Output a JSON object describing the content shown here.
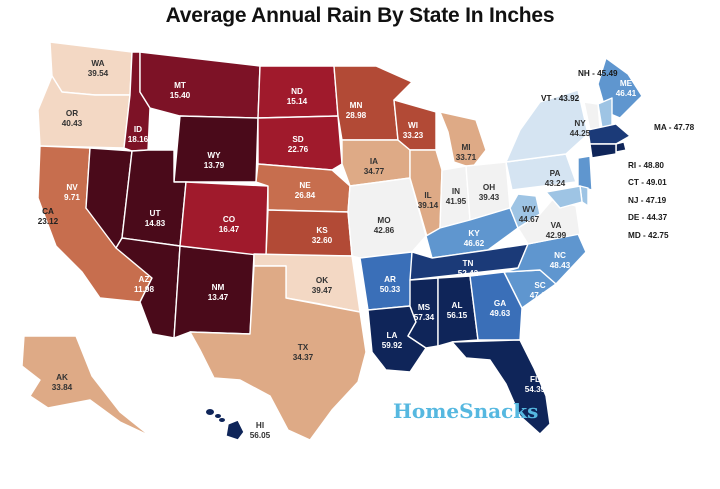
{
  "title": "Average Annual Rain By State In Inches",
  "brand": {
    "name": "HomeSnacks",
    "color": "#56b8e0"
  },
  "colors": {
    "dark_maroon": "#4a0a1a",
    "maroon": "#7d1226",
    "red": "#a01a2c",
    "brick": "#b24a36",
    "terracotta": "#c76e4e",
    "tan": "#deaa86",
    "peach": "#f3d8c4",
    "white": "#f2f2f2",
    "pale_blue": "#d5e4f2",
    "light_blue": "#9ec4e4",
    "mid_blue": "#5f96cf",
    "blue": "#3a6fb8",
    "dark_blue": "#1b3a78",
    "navy": "#0f2559"
  },
  "states": [
    {
      "abbr": "WA",
      "value": "39.54"
    },
    {
      "abbr": "OR",
      "value": "40.43"
    },
    {
      "abbr": "CA",
      "value": "23.12"
    },
    {
      "abbr": "NV",
      "value": "9.71"
    },
    {
      "abbr": "ID",
      "value": "18.16"
    },
    {
      "abbr": "MT",
      "value": "15.40"
    },
    {
      "abbr": "WY",
      "value": "13.79"
    },
    {
      "abbr": "UT",
      "value": "14.83"
    },
    {
      "abbr": "AZ",
      "value": "11.98"
    },
    {
      "abbr": "NM",
      "value": "13.47"
    },
    {
      "abbr": "CO",
      "value": "16.47"
    },
    {
      "abbr": "ND",
      "value": "15.14"
    },
    {
      "abbr": "SD",
      "value": "22.76"
    },
    {
      "abbr": "NE",
      "value": "26.84"
    },
    {
      "abbr": "KS",
      "value": "32.60"
    },
    {
      "abbr": "OK",
      "value": "39.47"
    },
    {
      "abbr": "TX",
      "value": "34.37"
    },
    {
      "abbr": "MN",
      "value": "28.98"
    },
    {
      "abbr": "IA",
      "value": "34.77"
    },
    {
      "abbr": "MO",
      "value": "42.86"
    },
    {
      "abbr": "AR",
      "value": "50.33"
    },
    {
      "abbr": "LA",
      "value": "59.92"
    },
    {
      "abbr": "WI",
      "value": "33.23"
    },
    {
      "abbr": "IL",
      "value": "39.14"
    },
    {
      "abbr": "MI",
      "value": "33.71"
    },
    {
      "abbr": "IN",
      "value": "41.95"
    },
    {
      "abbr": "OH",
      "value": "39.43"
    },
    {
      "abbr": "KY",
      "value": "46.62"
    },
    {
      "abbr": "TN",
      "value": "52.42"
    },
    {
      "abbr": "MS",
      "value": "57.34"
    },
    {
      "abbr": "AL",
      "value": "56.15"
    },
    {
      "abbr": "GA",
      "value": "49.63"
    },
    {
      "abbr": "FL",
      "value": "54.39"
    },
    {
      "abbr": "SC",
      "value": "47.04"
    },
    {
      "abbr": "NC",
      "value": "48.43"
    },
    {
      "abbr": "VA",
      "value": "42.99"
    },
    {
      "abbr": "WV",
      "value": "44.67"
    },
    {
      "abbr": "PA",
      "value": "43.24"
    },
    {
      "abbr": "NY",
      "value": "44.25"
    },
    {
      "abbr": "ME",
      "value": "46.41"
    },
    {
      "abbr": "AK",
      "value": "33.84"
    },
    {
      "abbr": "HI",
      "value": "56.05"
    }
  ],
  "callouts": [
    {
      "abbr": "NH",
      "value": "45.49"
    },
    {
      "abbr": "VT",
      "value": "43.92"
    },
    {
      "abbr": "MA",
      "value": "47.78"
    },
    {
      "abbr": "RI",
      "value": "48.80"
    },
    {
      "abbr": "CT",
      "value": "49.01"
    },
    {
      "abbr": "NJ",
      "value": "47.19"
    },
    {
      "abbr": "DE",
      "value": "44.37"
    },
    {
      "abbr": "MD",
      "value": "42.75"
    }
  ]
}
